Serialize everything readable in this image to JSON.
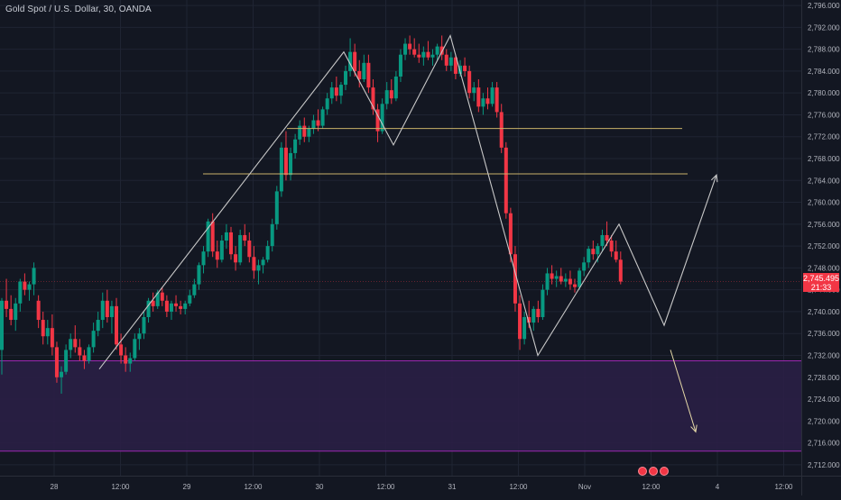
{
  "header": {
    "title": "Gold Spot / U.S. Dollar, 30, OANDA"
  },
  "last_price": {
    "value": "2,745.495",
    "countdown": "21:33"
  },
  "colors": {
    "up": "#089981",
    "down": "#f23645",
    "zone_fill": "#2a1f45",
    "zone_line": "#9c27b0",
    "level_line": "#c9b26a",
    "path": "#c8c8c8",
    "arrow_down": "#e6d9a8"
  },
  "chart_data": {
    "type": "candlestick",
    "title": "Gold Spot / U.S. Dollar, 30, OANDA",
    "ylim": [
      2710,
      2797
    ],
    "y_ticks": [
      "2,712.000",
      "2,716.000",
      "2,720.000",
      "2,724.000",
      "2,728.000",
      "2,732.000",
      "2,736.000",
      "2,740.000",
      "2,744.000",
      "2,748.000",
      "2,752.000",
      "2,756.000",
      "2,760.000",
      "2,764.000",
      "2,768.000",
      "2,772.000",
      "2,776.000",
      "2,780.000",
      "2,784.000",
      "2,788.000",
      "2,792.000",
      "2,796.000"
    ],
    "x_ticks": [
      "28",
      "12:00",
      "29",
      "12:00",
      "30",
      "12:00",
      "31",
      "12:00",
      "Nov",
      "12:00",
      "4",
      "12:00"
    ],
    "candles": [
      [
        2733.0,
        2742.5,
        2728.5,
        2742.0
      ],
      [
        2742.0,
        2746.0,
        2739.0,
        2740.5
      ],
      [
        2740.5,
        2743.0,
        2737.5,
        2738.5
      ],
      [
        2738.5,
        2742.5,
        2736.5,
        2741.5
      ],
      [
        2741.5,
        2746.0,
        2740.0,
        2745.5
      ],
      [
        2745.5,
        2747.0,
        2743.0,
        2744.0
      ],
      [
        2744.0,
        2745.5,
        2742.0,
        2745.0
      ],
      [
        2745.0,
        2749.0,
        2743.0,
        2748.0
      ],
      [
        2742.0,
        2743.0,
        2737.0,
        2738.5
      ],
      [
        2738.5,
        2740.0,
        2734.0,
        2735.5
      ],
      [
        2735.5,
        2738.5,
        2734.0,
        2737.0
      ],
      [
        2737.0,
        2739.5,
        2732.0,
        2733.5
      ],
      [
        2733.5,
        2734.5,
        2727.0,
        2728.0
      ],
      [
        2728.0,
        2730.0,
        2725.0,
        2729.0
      ],
      [
        2729.0,
        2734.0,
        2728.5,
        2733.0
      ],
      [
        2733.0,
        2736.0,
        2731.5,
        2735.0
      ],
      [
        2735.0,
        2737.5,
        2732.5,
        2733.5
      ],
      [
        2733.5,
        2735.0,
        2731.0,
        2732.0
      ],
      [
        2732.0,
        2733.0,
        2729.5,
        2731.0
      ],
      [
        2731.0,
        2734.0,
        2730.5,
        2733.5
      ],
      [
        2733.5,
        2738.0,
        2732.5,
        2736.5
      ],
      [
        2736.5,
        2740.0,
        2735.5,
        2738.5
      ],
      [
        2738.5,
        2743.5,
        2737.0,
        2742.0
      ],
      [
        2742.0,
        2744.0,
        2738.0,
        2739.0
      ],
      [
        2739.0,
        2742.0,
        2736.0,
        2741.0
      ],
      [
        2741.0,
        2742.5,
        2733.0,
        2734.0
      ],
      [
        2734.0,
        2736.0,
        2730.5,
        2732.0
      ],
      [
        2732.0,
        2733.5,
        2729.0,
        2730.5
      ],
      [
        2730.5,
        2732.5,
        2729.0,
        2731.5
      ],
      [
        2731.5,
        2736.0,
        2731.0,
        2735.0
      ],
      [
        2735.0,
        2737.0,
        2733.0,
        2736.0
      ],
      [
        2736.0,
        2740.0,
        2735.0,
        2739.0
      ],
      [
        2739.0,
        2742.5,
        2738.0,
        2742.0
      ],
      [
        2742.0,
        2743.5,
        2740.0,
        2741.0
      ],
      [
        2741.0,
        2744.0,
        2740.5,
        2743.5
      ],
      [
        2743.5,
        2744.5,
        2741.0,
        2742.0
      ],
      [
        2742.0,
        2743.0,
        2739.0,
        2740.0
      ],
      [
        2740.0,
        2742.0,
        2738.5,
        2741.5
      ],
      [
        2741.5,
        2743.0,
        2740.0,
        2741.0
      ],
      [
        2741.0,
        2742.0,
        2739.5,
        2740.5
      ],
      [
        2740.5,
        2742.0,
        2739.5,
        2741.5
      ],
      [
        2741.5,
        2744.0,
        2741.0,
        2743.0
      ],
      [
        2743.0,
        2746.0,
        2742.5,
        2745.0
      ],
      [
        2745.0,
        2749.0,
        2744.0,
        2748.5
      ],
      [
        2748.5,
        2752.0,
        2747.0,
        2751.0
      ],
      [
        2751.0,
        2757.0,
        2750.0,
        2756.5
      ],
      [
        2756.5,
        2758.0,
        2750.0,
        2751.0
      ],
      [
        2751.0,
        2753.0,
        2748.0,
        2749.5
      ],
      [
        2749.5,
        2754.0,
        2749.0,
        2753.0
      ],
      [
        2753.0,
        2756.0,
        2751.5,
        2754.5
      ],
      [
        2754.5,
        2755.5,
        2749.5,
        2750.5
      ],
      [
        2750.5,
        2752.0,
        2747.5,
        2749.0
      ],
      [
        2749.0,
        2755.0,
        2748.5,
        2754.0
      ],
      [
        2754.0,
        2756.0,
        2752.0,
        2753.0
      ],
      [
        2753.0,
        2754.5,
        2749.0,
        2750.0
      ],
      [
        2750.0,
        2752.0,
        2746.0,
        2747.5
      ],
      [
        2747.5,
        2749.5,
        2745.0,
        2748.5
      ],
      [
        2748.5,
        2750.0,
        2747.0,
        2749.5
      ],
      [
        2749.5,
        2753.0,
        2749.0,
        2752.0
      ],
      [
        2752.0,
        2757.0,
        2751.0,
        2756.0
      ],
      [
        2756.0,
        2763.0,
        2755.0,
        2762.0
      ],
      [
        2762.0,
        2771.0,
        2761.0,
        2770.0
      ],
      [
        2770.0,
        2773.0,
        2764.0,
        2765.0
      ],
      [
        2765.0,
        2770.0,
        2764.0,
        2769.0
      ],
      [
        2769.0,
        2772.5,
        2768.0,
        2771.5
      ],
      [
        2771.5,
        2775.0,
        2770.5,
        2774.0
      ],
      [
        2774.0,
        2775.5,
        2771.0,
        2772.0
      ],
      [
        2772.0,
        2774.0,
        2771.0,
        2773.5
      ],
      [
        2773.5,
        2776.0,
        2772.5,
        2775.0
      ],
      [
        2775.0,
        2777.0,
        2773.0,
        2774.0
      ],
      [
        2774.0,
        2777.5,
        2773.5,
        2777.0
      ],
      [
        2777.0,
        2780.0,
        2776.0,
        2779.0
      ],
      [
        2779.0,
        2782.0,
        2778.0,
        2781.0
      ],
      [
        2781.0,
        2783.0,
        2778.5,
        2779.5
      ],
      [
        2779.5,
        2782.0,
        2778.0,
        2781.5
      ],
      [
        2781.5,
        2785.0,
        2780.5,
        2784.0
      ],
      [
        2784.0,
        2790.0,
        2783.0,
        2787.5
      ],
      [
        2787.5,
        2789.0,
        2783.0,
        2784.0
      ],
      [
        2784.0,
        2786.0,
        2781.0,
        2782.5
      ],
      [
        2782.5,
        2787.0,
        2782.0,
        2785.5
      ],
      [
        2785.5,
        2787.0,
        2780.0,
        2781.0
      ],
      [
        2781.0,
        2782.5,
        2776.0,
        2777.0
      ],
      [
        2777.0,
        2778.0,
        2771.0,
        2773.0
      ],
      [
        2773.0,
        2779.0,
        2772.5,
        2778.0
      ],
      [
        2778.0,
        2782.0,
        2777.0,
        2780.5
      ],
      [
        2780.5,
        2782.5,
        2778.0,
        2779.0
      ],
      [
        2779.0,
        2784.0,
        2778.5,
        2783.0
      ],
      [
        2783.0,
        2788.0,
        2782.0,
        2787.0
      ],
      [
        2787.0,
        2790.0,
        2786.0,
        2789.0
      ],
      [
        2789.0,
        2790.5,
        2787.0,
        2788.0
      ],
      [
        2788.0,
        2790.0,
        2786.5,
        2787.0
      ],
      [
        2787.0,
        2789.0,
        2785.5,
        2786.5
      ],
      [
        2786.5,
        2788.5,
        2785.0,
        2787.5
      ],
      [
        2787.5,
        2789.5,
        2786.0,
        2786.5
      ],
      [
        2786.5,
        2788.0,
        2785.0,
        2787.0
      ],
      [
        2787.0,
        2789.0,
        2786.0,
        2788.5
      ],
      [
        2788.5,
        2790.5,
        2786.0,
        2787.0
      ],
      [
        2787.0,
        2788.0,
        2784.0,
        2785.0
      ],
      [
        2785.0,
        2787.5,
        2784.0,
        2786.5
      ],
      [
        2786.5,
        2787.0,
        2782.5,
        2783.5
      ],
      [
        2783.5,
        2786.0,
        2783.0,
        2785.0
      ],
      [
        2785.0,
        2786.5,
        2783.0,
        2784.0
      ],
      [
        2784.0,
        2785.0,
        2779.0,
        2780.0
      ],
      [
        2780.0,
        2782.0,
        2778.5,
        2781.0
      ],
      [
        2781.0,
        2782.5,
        2776.5,
        2777.5
      ],
      [
        2777.5,
        2780.0,
        2776.0,
        2779.0
      ],
      [
        2779.0,
        2781.0,
        2777.0,
        2778.0
      ],
      [
        2778.0,
        2782.0,
        2777.5,
        2781.0
      ],
      [
        2781.0,
        2782.0,
        2775.5,
        2776.5
      ],
      [
        2776.5,
        2778.0,
        2769.0,
        2770.0
      ],
      [
        2770.0,
        2771.0,
        2757.0,
        2758.0
      ],
      [
        2758.0,
        2759.0,
        2749.0,
        2750.5
      ],
      [
        2750.5,
        2752.0,
        2740.0,
        2741.5
      ],
      [
        2741.5,
        2743.0,
        2733.0,
        2735.0
      ],
      [
        2735.0,
        2740.0,
        2734.0,
        2739.0
      ],
      [
        2739.0,
        2742.0,
        2737.0,
        2738.0
      ],
      [
        2738.0,
        2741.0,
        2736.5,
        2740.5
      ],
      [
        2740.5,
        2742.0,
        2738.0,
        2739.0
      ],
      [
        2739.0,
        2745.0,
        2738.5,
        2744.0
      ],
      [
        2744.0,
        2748.0,
        2743.0,
        2747.0
      ],
      [
        2747.0,
        2748.5,
        2745.0,
        2746.0
      ],
      [
        2746.0,
        2747.5,
        2744.5,
        2746.5
      ],
      [
        2746.5,
        2748.0,
        2745.0,
        2745.5
      ],
      [
        2745.5,
        2747.0,
        2744.5,
        2746.0
      ],
      [
        2746.0,
        2747.5,
        2744.0,
        2745.0
      ],
      [
        2745.0,
        2746.0,
        2743.5,
        2744.5
      ],
      [
        2744.5,
        2748.0,
        2744.0,
        2747.5
      ],
      [
        2747.5,
        2750.0,
        2746.5,
        2749.0
      ],
      [
        2749.0,
        2752.0,
        2748.0,
        2751.5
      ],
      [
        2751.5,
        2753.0,
        2749.5,
        2750.5
      ],
      [
        2750.5,
        2752.5,
        2749.0,
        2752.0
      ],
      [
        2752.0,
        2755.0,
        2751.0,
        2754.0
      ],
      [
        2754.0,
        2756.5,
        2752.0,
        2753.0
      ],
      [
        2753.0,
        2754.0,
        2750.0,
        2751.0
      ],
      [
        2751.0,
        2753.0,
        2749.0,
        2749.5
      ],
      [
        2749.5,
        2751.0,
        2745.0,
        2745.5
      ]
    ],
    "levels": [
      2773.5,
      2765.2
    ],
    "zone": [
      2714.5,
      2731.0
    ],
    "path": [
      [
        2729.5,
        0
      ],
      [
        2787.5,
        1
      ],
      [
        2770.5,
        2
      ],
      [
        2790.5,
        3
      ],
      [
        2732.0,
        4
      ],
      [
        2756.0,
        5
      ],
      [
        2737.5,
        6
      ],
      [
        2765.0,
        7
      ]
    ],
    "path_down_arrow": [
      [
        2733.0,
        0
      ],
      [
        2718.0,
        1
      ]
    ]
  }
}
